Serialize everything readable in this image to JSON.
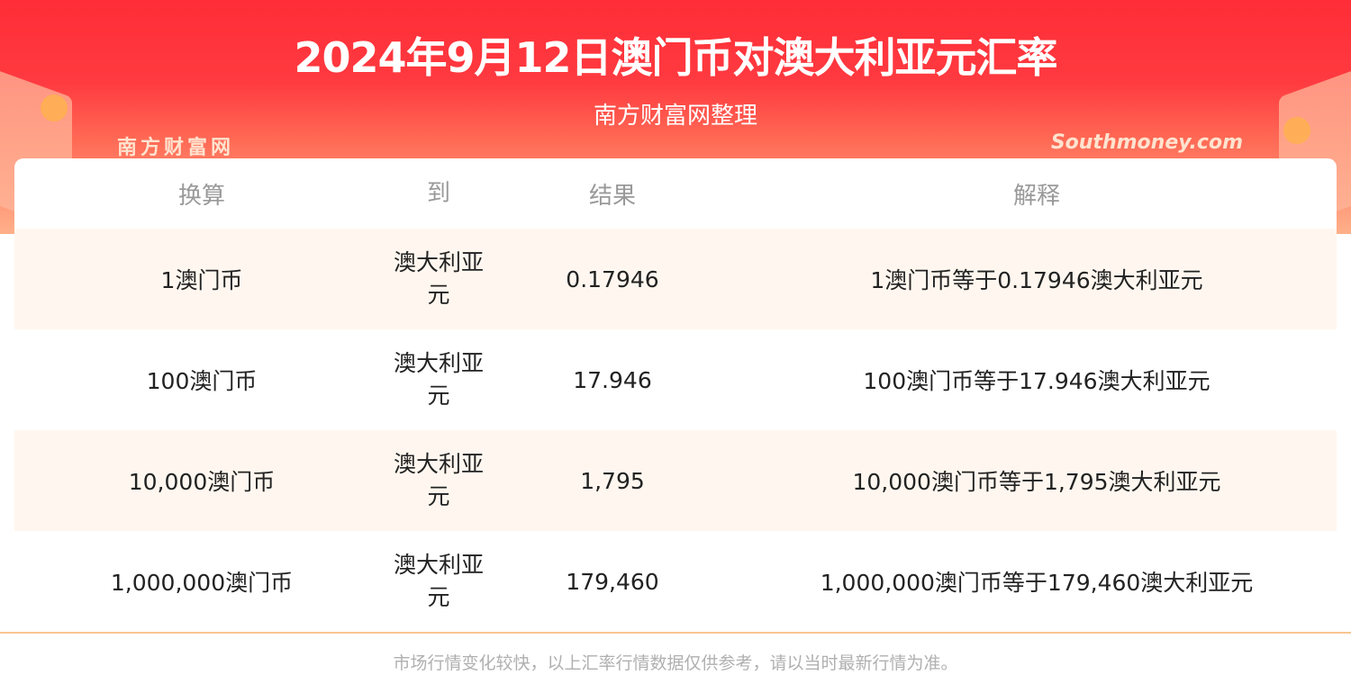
{
  "header": {
    "title": "2024年9月12日澳门币对澳大利亚元汇率",
    "subtitle": "南方财富网整理"
  },
  "table": {
    "columns": [
      "换算",
      "到",
      "结果",
      "解释"
    ],
    "rows": [
      {
        "from": "1澳门币",
        "to": "澳大利亚元",
        "result": "0.17946",
        "explain": "1澳门币等于0.17946澳大利亚元"
      },
      {
        "from": "100澳门币",
        "to": "澳大利亚元",
        "result": "17.946",
        "explain": "100澳门币等于17.946澳大利亚元"
      },
      {
        "from": "10,000澳门币",
        "to": "澳大利亚元",
        "result": "1,795",
        "explain": "10,000澳门币等于1,795澳大利亚元"
      },
      {
        "from": "1,000,000澳门币",
        "to": "澳大利亚元",
        "result": "179,460",
        "explain": "1,000,000澳门币等于179,460澳大利亚元"
      }
    ]
  },
  "watermark": {
    "cn": "南方财富网",
    "en": "Southmoney.com"
  },
  "footer": {
    "note": "市场行情变化较快，以上汇率行情数据仅供参考，请以当时最新行情为准。"
  }
}
